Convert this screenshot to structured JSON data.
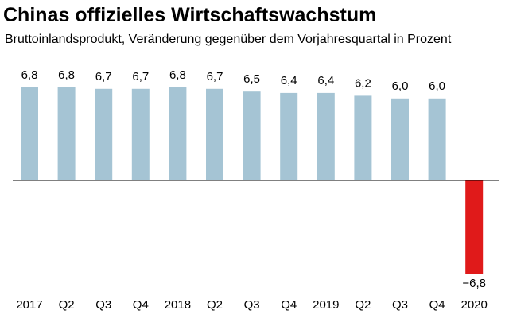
{
  "chart_data": {
    "type": "bar",
    "title": "Chinas offizielles Wirtschaftswachstum",
    "subtitle": "Bruttoinlandsprodukt, Veränderung gegenüber dem Vorjahresquartal in Prozent",
    "xlabel": "",
    "ylabel": "",
    "categories": [
      "2017",
      "Q2",
      "Q3",
      "Q4",
      "2018",
      "Q2",
      "Q3",
      "Q4",
      "2019",
      "Q2",
      "Q3",
      "Q4",
      "2020"
    ],
    "values": [
      6.8,
      6.8,
      6.7,
      6.7,
      6.8,
      6.7,
      6.5,
      6.4,
      6.4,
      6.2,
      6.0,
      6.0,
      -6.8
    ],
    "value_labels": [
      "6,8",
      "6,8",
      "6,7",
      "6,7",
      "6,8",
      "6,7",
      "6,5",
      "6,4",
      "6,4",
      "6,2",
      "6,0",
      "6,0",
      "−6,8"
    ],
    "ylim": [
      -6.8,
      6.8
    ],
    "grid": false,
    "legend": "none",
    "colors": {
      "positive": "#a5c4d4",
      "negative": "#e01a1a",
      "baseline": "#000000"
    }
  }
}
